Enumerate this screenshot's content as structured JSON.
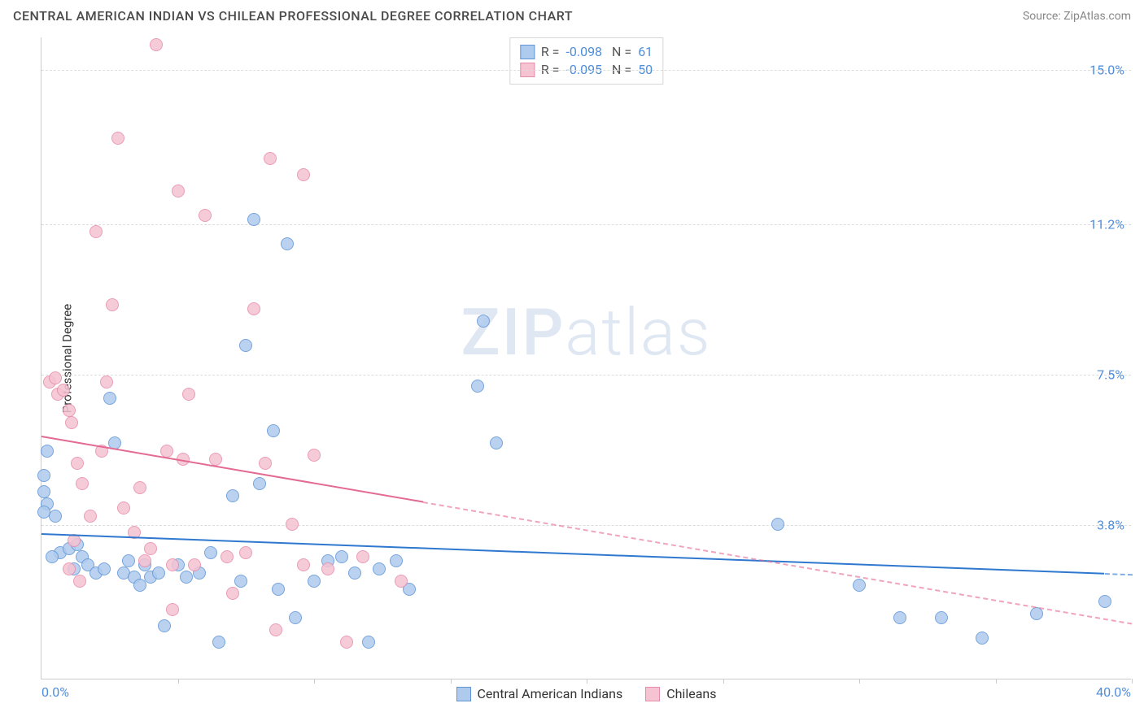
{
  "header": {
    "title": "CENTRAL AMERICAN INDIAN VS CHILEAN PROFESSIONAL DEGREE CORRELATION CHART",
    "source": "Source: ZipAtlas.com"
  },
  "watermark": {
    "zip": "ZIP",
    "atlas": "atlas"
  },
  "chart": {
    "type": "scatter",
    "ylabel": "Professional Degree",
    "xlim": [
      0,
      40
    ],
    "ylim": [
      0,
      15.8
    ],
    "xticks": [
      0,
      5,
      10,
      15,
      20,
      25,
      30,
      35,
      40
    ],
    "yticks": [
      3.8,
      7.5,
      11.2,
      15.0
    ],
    "ytick_labels": [
      "3.8%",
      "7.5%",
      "11.2%",
      "15.0%"
    ],
    "x_min_label": "0.0%",
    "x_max_label": "40.0%",
    "grid_color": "#dddddd",
    "axis_color": "#cccccc",
    "background_color": "#ffffff",
    "tick_label_color": "#4f8edb",
    "ylabel_color": "#333333",
    "series": [
      {
        "name": "Central American Indians",
        "marker_fill": "#aecbee",
        "marker_stroke": "#5f95d6",
        "marker_size": 16,
        "trend_color": "#2f78cf",
        "trend": {
          "x1": 0,
          "y1": 3.6,
          "x2": 40,
          "y2": 2.6,
          "solid_until_x": 39
        },
        "R": "-0.098",
        "N": "61",
        "points": [
          [
            0.2,
            5.6
          ],
          [
            0.1,
            5.0
          ],
          [
            0.1,
            4.6
          ],
          [
            0.2,
            4.3
          ],
          [
            0.1,
            4.1
          ],
          [
            0.5,
            4.0
          ],
          [
            0.7,
            3.1
          ],
          [
            1.0,
            3.2
          ],
          [
            0.4,
            3.0
          ],
          [
            1.3,
            3.3
          ],
          [
            1.5,
            3.0
          ],
          [
            1.2,
            2.7
          ],
          [
            1.7,
            2.8
          ],
          [
            2.0,
            2.6
          ],
          [
            2.3,
            2.7
          ],
          [
            2.5,
            6.9
          ],
          [
            2.7,
            5.8
          ],
          [
            3.0,
            2.6
          ],
          [
            3.2,
            2.9
          ],
          [
            3.4,
            2.5
          ],
          [
            3.6,
            2.3
          ],
          [
            3.8,
            2.8
          ],
          [
            4.0,
            2.5
          ],
          [
            4.3,
            2.6
          ],
          [
            4.5,
            1.3
          ],
          [
            5.0,
            2.8
          ],
          [
            5.3,
            2.5
          ],
          [
            5.8,
            2.6
          ],
          [
            6.2,
            3.1
          ],
          [
            6.5,
            0.9
          ],
          [
            7.0,
            4.5
          ],
          [
            7.3,
            2.4
          ],
          [
            7.5,
            8.2
          ],
          [
            7.8,
            11.3
          ],
          [
            8.0,
            4.8
          ],
          [
            8.5,
            6.1
          ],
          [
            8.7,
            2.2
          ],
          [
            9.0,
            10.7
          ],
          [
            9.3,
            1.5
          ],
          [
            10.0,
            2.4
          ],
          [
            10.5,
            2.9
          ],
          [
            11.0,
            3.0
          ],
          [
            11.5,
            2.6
          ],
          [
            12.0,
            0.9
          ],
          [
            12.4,
            2.7
          ],
          [
            13.0,
            2.9
          ],
          [
            13.5,
            2.2
          ],
          [
            16.0,
            7.2
          ],
          [
            16.2,
            8.8
          ],
          [
            16.7,
            5.8
          ],
          [
            27.0,
            3.8
          ],
          [
            30.0,
            2.3
          ],
          [
            31.5,
            1.5
          ],
          [
            33.0,
            1.5
          ],
          [
            34.5,
            1.0
          ],
          [
            36.5,
            1.6
          ],
          [
            39.0,
            1.9
          ]
        ]
      },
      {
        "name": "Chileans",
        "marker_fill": "#f5c3d2",
        "marker_stroke": "#e78bab",
        "marker_size": 16,
        "trend_color": "#e36a92",
        "trend": {
          "x1": 0,
          "y1": 6.0,
          "x2": 40,
          "y2": 1.4,
          "solid_until_x": 14
        },
        "R": "-0.095",
        "N": "50",
        "points": [
          [
            0.3,
            7.3
          ],
          [
            0.5,
            7.4
          ],
          [
            0.6,
            7.0
          ],
          [
            0.8,
            7.1
          ],
          [
            1.0,
            6.6
          ],
          [
            1.1,
            6.3
          ],
          [
            1.3,
            5.3
          ],
          [
            1.5,
            4.8
          ],
          [
            1.8,
            4.0
          ],
          [
            1.2,
            3.4
          ],
          [
            1.0,
            2.7
          ],
          [
            1.4,
            2.4
          ],
          [
            2.0,
            11.0
          ],
          [
            2.2,
            5.6
          ],
          [
            2.4,
            7.3
          ],
          [
            2.6,
            9.2
          ],
          [
            2.8,
            13.3
          ],
          [
            3.0,
            4.2
          ],
          [
            3.4,
            3.6
          ],
          [
            3.6,
            4.7
          ],
          [
            3.8,
            2.9
          ],
          [
            4.0,
            3.2
          ],
          [
            4.2,
            15.6
          ],
          [
            4.6,
            5.6
          ],
          [
            4.8,
            2.8
          ],
          [
            4.8,
            1.7
          ],
          [
            5.0,
            12.0
          ],
          [
            5.2,
            5.4
          ],
          [
            5.4,
            7.0
          ],
          [
            5.6,
            2.8
          ],
          [
            6.0,
            11.4
          ],
          [
            6.4,
            5.4
          ],
          [
            6.8,
            3.0
          ],
          [
            7.0,
            2.1
          ],
          [
            7.5,
            3.1
          ],
          [
            7.8,
            9.1
          ],
          [
            8.2,
            5.3
          ],
          [
            8.4,
            12.8
          ],
          [
            8.6,
            1.2
          ],
          [
            9.2,
            3.8
          ],
          [
            9.6,
            12.4
          ],
          [
            9.6,
            2.8
          ],
          [
            10.0,
            5.5
          ],
          [
            10.5,
            2.7
          ],
          [
            11.2,
            0.9
          ],
          [
            11.8,
            3.0
          ],
          [
            13.2,
            2.4
          ]
        ]
      }
    ],
    "legend_bottom": [
      {
        "label": "Central American Indians",
        "swatch_fill": "#aecbee",
        "swatch_stroke": "#5f95d6"
      },
      {
        "label": "Chileans",
        "swatch_fill": "#f5c3d2",
        "swatch_stroke": "#e78bab"
      }
    ]
  }
}
